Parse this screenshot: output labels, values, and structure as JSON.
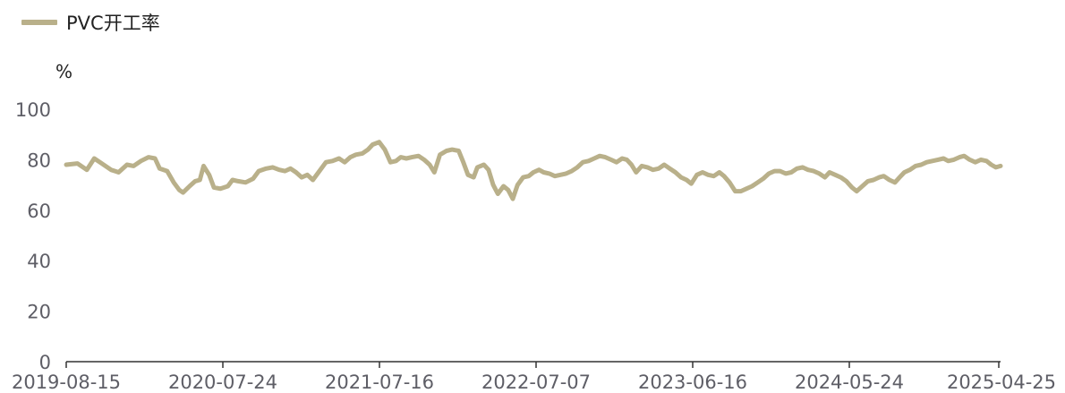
{
  "legend": {
    "label": "PVC开工率",
    "color": "#B9B08A"
  },
  "unit": "%",
  "chart_data": {
    "type": "line",
    "series": [
      {
        "name": "PVC开工率",
        "color": "#B9B08A"
      }
    ],
    "x_tick_labels": [
      "2019-08-15",
      "2020-07-24",
      "2021-07-16",
      "2022-07-07",
      "2023-06-16",
      "2024-05-24",
      "2025-04-25"
    ],
    "y_tick_labels": [
      "0",
      "20",
      "40",
      "60",
      "80",
      "100"
    ],
    "ylim": [
      0,
      100
    ],
    "ylabel": "%",
    "grid": false,
    "legend_position": "top-left",
    "points": [
      [
        0,
        78
      ],
      [
        0.012,
        78.5
      ],
      [
        0.022,
        76
      ],
      [
        0.03,
        80.5
      ],
      [
        0.036,
        79
      ],
      [
        0.048,
        76
      ],
      [
        0.056,
        75
      ],
      [
        0.065,
        78
      ],
      [
        0.072,
        77.5
      ],
      [
        0.08,
        79.5
      ],
      [
        0.088,
        81
      ],
      [
        0.095,
        80.5
      ],
      [
        0.1,
        76.5
      ],
      [
        0.108,
        75.5
      ],
      [
        0.115,
        71
      ],
      [
        0.121,
        68
      ],
      [
        0.125,
        67
      ],
      [
        0.132,
        69.5
      ],
      [
        0.138,
        71.5
      ],
      [
        0.143,
        72
      ],
      [
        0.147,
        77.5
      ],
      [
        0.153,
        74
      ],
      [
        0.158,
        69
      ],
      [
        0.165,
        68.5
      ],
      [
        0.173,
        69.5
      ],
      [
        0.178,
        72
      ],
      [
        0.184,
        71.5
      ],
      [
        0.192,
        71
      ],
      [
        0.2,
        72.5
      ],
      [
        0.206,
        75.5
      ],
      [
        0.214,
        76.5
      ],
      [
        0.221,
        77
      ],
      [
        0.228,
        76
      ],
      [
        0.234,
        75.5
      ],
      [
        0.24,
        76.5
      ],
      [
        0.246,
        75
      ],
      [
        0.252,
        73
      ],
      [
        0.258,
        74
      ],
      [
        0.264,
        72
      ],
      [
        0.271,
        75.5
      ],
      [
        0.278,
        79
      ],
      [
        0.285,
        79.5
      ],
      [
        0.292,
        80.5
      ],
      [
        0.298,
        79
      ],
      [
        0.304,
        81
      ],
      [
        0.31,
        82
      ],
      [
        0.317,
        82.5
      ],
      [
        0.323,
        84
      ],
      [
        0.328,
        86
      ],
      [
        0.335,
        87
      ],
      [
        0.341,
        84
      ],
      [
        0.347,
        79
      ],
      [
        0.353,
        79.5
      ],
      [
        0.358,
        81
      ],
      [
        0.364,
        80.5
      ],
      [
        0.37,
        81
      ],
      [
        0.377,
        81.5
      ],
      [
        0.383,
        80
      ],
      [
        0.389,
        78
      ],
      [
        0.394,
        75
      ],
      [
        0.4,
        82
      ],
      [
        0.407,
        83.5
      ],
      [
        0.413,
        84
      ],
      [
        0.42,
        83.5
      ],
      [
        0.425,
        79
      ],
      [
        0.43,
        74
      ],
      [
        0.436,
        73
      ],
      [
        0.44,
        77
      ],
      [
        0.447,
        78
      ],
      [
        0.452,
        76
      ],
      [
        0.457,
        70
      ],
      [
        0.462,
        66.5
      ],
      [
        0.468,
        69.5
      ],
      [
        0.473,
        68
      ],
      [
        0.478,
        64.5
      ],
      [
        0.483,
        70
      ],
      [
        0.489,
        73
      ],
      [
        0.495,
        73.5
      ],
      [
        0.5,
        75
      ],
      [
        0.506,
        76
      ],
      [
        0.511,
        75
      ],
      [
        0.517,
        74.5
      ],
      [
        0.523,
        73.5
      ],
      [
        0.529,
        74
      ],
      [
        0.535,
        74.5
      ],
      [
        0.541,
        75.5
      ],
      [
        0.547,
        77
      ],
      [
        0.553,
        79
      ],
      [
        0.559,
        79.5
      ],
      [
        0.565,
        80.5
      ],
      [
        0.571,
        81.5
      ],
      [
        0.577,
        81
      ],
      [
        0.583,
        80
      ],
      [
        0.589,
        79
      ],
      [
        0.595,
        80.5
      ],
      [
        0.6,
        80
      ],
      [
        0.605,
        78
      ],
      [
        0.61,
        75
      ],
      [
        0.616,
        77.5
      ],
      [
        0.622,
        77
      ],
      [
        0.628,
        76
      ],
      [
        0.634,
        76.5
      ],
      [
        0.64,
        78
      ],
      [
        0.646,
        76.5
      ],
      [
        0.652,
        75
      ],
      [
        0.658,
        73
      ],
      [
        0.664,
        72
      ],
      [
        0.669,
        70.5
      ],
      [
        0.675,
        74
      ],
      [
        0.681,
        75
      ],
      [
        0.687,
        74
      ],
      [
        0.693,
        73.5
      ],
      [
        0.699,
        75
      ],
      [
        0.704,
        73.5
      ],
      [
        0.71,
        71
      ],
      [
        0.716,
        67.5
      ],
      [
        0.722,
        67.5
      ],
      [
        0.728,
        68.5
      ],
      [
        0.734,
        69.5
      ],
      [
        0.74,
        71
      ],
      [
        0.746,
        72.5
      ],
      [
        0.752,
        74.5
      ],
      [
        0.758,
        75.5
      ],
      [
        0.764,
        75.5
      ],
      [
        0.77,
        74.5
      ],
      [
        0.776,
        75
      ],
      [
        0.782,
        76.5
      ],
      [
        0.788,
        77
      ],
      [
        0.794,
        76
      ],
      [
        0.8,
        75.5
      ],
      [
        0.806,
        74.5
      ],
      [
        0.812,
        73
      ],
      [
        0.817,
        75
      ],
      [
        0.823,
        74
      ],
      [
        0.829,
        73
      ],
      [
        0.835,
        71.5
      ],
      [
        0.841,
        69
      ],
      [
        0.846,
        67.5
      ],
      [
        0.852,
        69.5
      ],
      [
        0.858,
        71.5
      ],
      [
        0.864,
        72
      ],
      [
        0.87,
        73
      ],
      [
        0.875,
        73.5
      ],
      [
        0.881,
        72
      ],
      [
        0.887,
        71
      ],
      [
        0.892,
        73
      ],
      [
        0.897,
        75
      ],
      [
        0.903,
        76
      ],
      [
        0.909,
        77.5
      ],
      [
        0.915,
        78
      ],
      [
        0.921,
        79
      ],
      [
        0.927,
        79.5
      ],
      [
        0.933,
        80
      ],
      [
        0.939,
        80.5
      ],
      [
        0.944,
        79.5
      ],
      [
        0.95,
        80
      ],
      [
        0.956,
        81
      ],
      [
        0.961,
        81.5
      ],
      [
        0.967,
        80
      ],
      [
        0.973,
        79
      ],
      [
        0.979,
        80
      ],
      [
        0.985,
        79.5
      ],
      [
        0.99,
        78
      ],
      [
        0.995,
        77
      ],
      [
        1,
        77.5
      ]
    ]
  }
}
